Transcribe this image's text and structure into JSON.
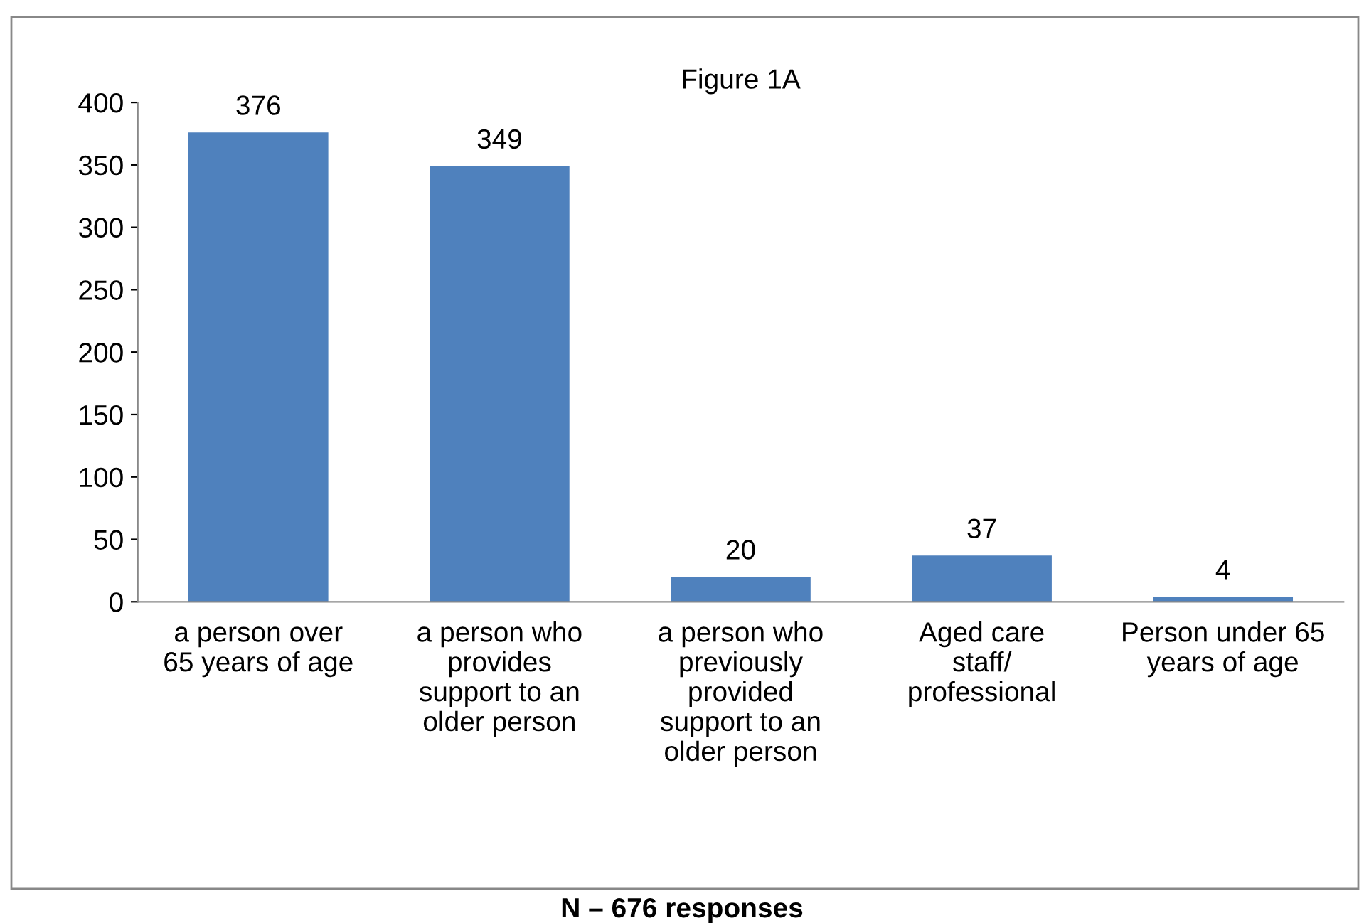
{
  "chart_data": {
    "type": "bar",
    "title": "Figure 1A",
    "categories": [
      "a person over 65 years of age",
      "a person who provides support to an older person",
      "a person who previously provided support to an older person",
      "Aged care staff/ professional",
      "Person under 65 years of age"
    ],
    "values": [
      376,
      349,
      20,
      37,
      4
    ],
    "color": "#4f81bd",
    "ylim": [
      0,
      400
    ],
    "yticks": [
      0,
      50,
      100,
      150,
      200,
      250,
      300,
      350,
      400
    ],
    "data_labels": true,
    "grid": false,
    "legend": false,
    "annotations": [
      "N – 676 responses"
    ]
  }
}
